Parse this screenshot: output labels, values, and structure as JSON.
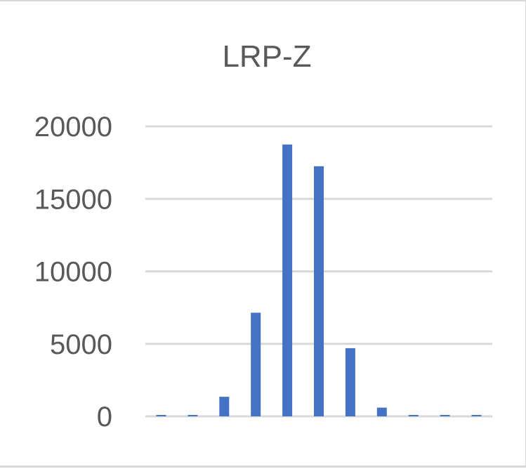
{
  "chart_data": {
    "type": "bar",
    "title": "LRP-Z",
    "xlabel": "",
    "ylabel": "",
    "categories": [
      "",
      "",
      "",
      "",
      "",
      "",
      "",
      "",
      "",
      "",
      ""
    ],
    "values": [
      10,
      80,
      1350,
      7150,
      18750,
      17250,
      4700,
      600,
      20,
      5,
      5
    ],
    "ylim": [
      0,
      20000
    ],
    "yticks": [
      0,
      5000,
      10000,
      15000,
      20000
    ],
    "ytick_labels": [
      "0",
      "5000",
      "10000",
      "15000",
      "20000"
    ],
    "grid": true,
    "legend": "none",
    "colors": {
      "bar": "#4472C4",
      "grid": "#d9d9d9",
      "text": "#595959"
    }
  }
}
